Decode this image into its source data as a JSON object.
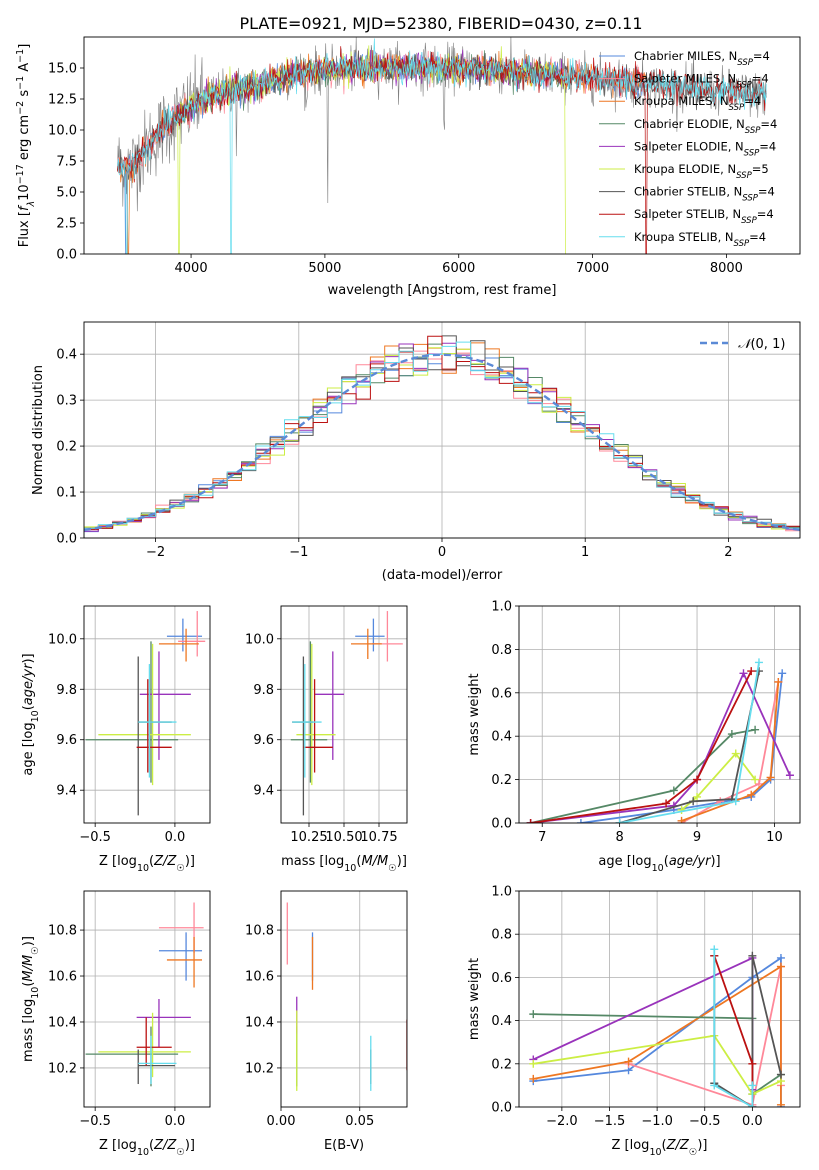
{
  "figure": {
    "title": "PLATE=0921, MJD=52380, FIBERID=0430, z=0.11"
  },
  "colors": {
    "Chabrier MILES": "#5588dd",
    "Salpeter MILES": "#ff8899",
    "Kroupa MILES": "#ee7722",
    "Chabrier ELODIE": "#558866",
    "Salpeter ELODIE": "#9933bb",
    "Kroupa ELODIE": "#ccee44",
    "Chabrier STELIB": "#555555",
    "Salpeter STELIB": "#bb1111",
    "Kroupa STELIB": "#66ddee",
    "data": "#808080"
  },
  "chart_data": [
    {
      "id": "spectrum",
      "type": "line",
      "title": "PLATE=0921, MJD=52380, FIBERID=0430, z=0.11",
      "xlabel": "wavelength [Angstrom, rest frame]",
      "ylabel": "Flux [f_λ 10^-17 erg cm^-2 s^-1 A^-1]",
      "xlim": [
        3200,
        8550
      ],
      "ylim": [
        0,
        17.5
      ],
      "xticks": [
        4000,
        5000,
        6000,
        7000,
        8000
      ],
      "yticks": [
        0.0,
        2.5,
        5.0,
        7.5,
        10.0,
        12.5,
        15.0
      ],
      "grid": false,
      "legend": "right",
      "legend_entries": [
        "Chabrier MILES, N_SSP=4",
        "Salpeter MILES, N_SSP=4",
        "Kroupa MILES, N_SSP=4",
        "Chabrier ELODIE, N_SSP=4",
        "Salpeter ELODIE, N_SSP=4",
        "Kroupa ELODIE, N_SSP=5",
        "Chabrier STELIB, N_SSP=4",
        "Salpeter STELIB, N_SSP=4",
        "Kroupa STELIB, N_SSP=4"
      ],
      "continuum": {
        "x": [
          3450,
          3550,
          3700,
          3800,
          3950,
          4100,
          4300,
          4500,
          4800,
          5000,
          5300,
          5600,
          6000,
          6300,
          6600,
          7000,
          7400,
          7800,
          8100,
          8300
        ],
        "y": [
          7.2,
          7.0,
          9.0,
          10.2,
          11.5,
          12.6,
          13.2,
          13.6,
          14.6,
          14.9,
          15.0,
          15.1,
          15.0,
          14.8,
          14.5,
          14.2,
          13.7,
          13.3,
          13.0,
          12.8
        ]
      }
    },
    {
      "id": "residuals",
      "type": "histogram",
      "xlabel": "(data-model)/error",
      "ylabel": "Normed distribution",
      "xlim": [
        -2.5,
        2.5
      ],
      "ylim": [
        0,
        0.47
      ],
      "xticks": [
        -2,
        -1,
        0,
        1,
        2
      ],
      "yticks": [
        0.0,
        0.1,
        0.2,
        0.3,
        0.4
      ],
      "grid": true,
      "legend": "top-right",
      "legend_entries": [
        "N(0,1)"
      ],
      "bin_width": 0.1,
      "bins_from": -2.5,
      "bins_to": 2.5
    },
    {
      "id": "age-vs-Z",
      "type": "errorbar",
      "xlabel": "Z [log10(Z/Z☉)]",
      "ylabel": "age [log10(age/yr)]",
      "xlim": [
        -0.57,
        0.22
      ],
      "ylim": [
        9.27,
        10.13
      ],
      "xticks": [
        -0.5,
        0.0
      ],
      "yticks": [
        9.4,
        9.6,
        9.8,
        10.0
      ],
      "grid": true,
      "points": [
        {
          "model": "Chabrier MILES",
          "x": 0.05,
          "xlo": -0.05,
          "xhi": 0.17,
          "y": 10.01,
          "ylo": 9.95,
          "yhi": 10.08
        },
        {
          "model": "Salpeter MILES",
          "x": 0.14,
          "xlo": 0.02,
          "xhi": 0.19,
          "y": 9.99,
          "ylo": 9.93,
          "yhi": 10.11
        },
        {
          "model": "Kroupa MILES",
          "x": 0.07,
          "xlo": -0.1,
          "xhi": 0.15,
          "y": 9.98,
          "ylo": 9.91,
          "yhi": 10.04
        },
        {
          "model": "Chabrier ELODIE",
          "x": -0.15,
          "xlo": -0.56,
          "xhi": 0.02,
          "y": 9.6,
          "ylo": 9.43,
          "yhi": 9.99
        },
        {
          "model": "Salpeter ELODIE",
          "x": -0.1,
          "xlo": -0.22,
          "xhi": 0.1,
          "y": 9.78,
          "ylo": 9.52,
          "yhi": 9.95
        },
        {
          "model": "Kroupa ELODIE",
          "x": -0.14,
          "xlo": -0.48,
          "xhi": 0.1,
          "y": 9.62,
          "ylo": 9.42,
          "yhi": 9.98
        },
        {
          "model": "Chabrier STELIB",
          "x": -0.23,
          "xlo": -0.23,
          "xhi": -0.02,
          "y": 9.67,
          "ylo": 9.3,
          "yhi": 9.93
        },
        {
          "model": "Salpeter STELIB",
          "x": -0.17,
          "xlo": -0.24,
          "xhi": -0.02,
          "y": 9.57,
          "ylo": 9.47,
          "yhi": 9.84
        },
        {
          "model": "Kroupa STELIB",
          "x": -0.16,
          "xlo": -0.23,
          "xhi": 0.01,
          "y": 9.67,
          "ylo": 9.45,
          "yhi": 9.9
        }
      ]
    },
    {
      "id": "age-vs-mass",
      "type": "errorbar",
      "xlabel": "mass [log10(M/M☉)]",
      "xlim": [
        10.05,
        10.95
      ],
      "ylim": [
        9.27,
        10.13
      ],
      "xticks": [
        10.25,
        10.5,
        10.75
      ],
      "xtick_labels": [
        "10.25",
        "10.50",
        "10.75"
      ],
      "yticks": [
        9.4,
        9.6,
        9.8,
        10.0
      ],
      "grid": true,
      "points": [
        {
          "model": "Chabrier MILES",
          "x": 10.71,
          "xlo": 10.58,
          "xhi": 10.79,
          "y": 10.01,
          "ylo": 9.95,
          "yhi": 10.08
        },
        {
          "model": "Salpeter MILES",
          "x": 10.81,
          "xlo": 10.7,
          "xhi": 10.92,
          "y": 9.98,
          "ylo": 9.91,
          "yhi": 10.11
        },
        {
          "model": "Kroupa MILES",
          "x": 10.67,
          "xlo": 10.55,
          "xhi": 10.77,
          "y": 9.98,
          "ylo": 9.92,
          "yhi": 10.04
        },
        {
          "model": "Chabrier ELODIE",
          "x": 10.26,
          "xlo": 10.12,
          "xhi": 10.38,
          "y": 9.6,
          "ylo": 9.43,
          "yhi": 9.99
        },
        {
          "model": "Salpeter ELODIE",
          "x": 10.42,
          "xlo": 10.29,
          "xhi": 10.5,
          "y": 9.78,
          "ylo": 9.52,
          "yhi": 9.95
        },
        {
          "model": "Kroupa ELODIE",
          "x": 10.27,
          "xlo": 10.16,
          "xhi": 10.44,
          "y": 9.62,
          "ylo": 9.42,
          "yhi": 9.98
        },
        {
          "model": "Chabrier STELIB",
          "x": 10.21,
          "xlo": 10.13,
          "xhi": 10.28,
          "y": 9.67,
          "ylo": 9.3,
          "yhi": 9.93
        },
        {
          "model": "Salpeter STELIB",
          "x": 10.29,
          "xlo": 10.21,
          "xhi": 10.42,
          "y": 9.57,
          "ylo": 9.47,
          "yhi": 9.84
        },
        {
          "model": "Kroupa STELIB",
          "x": 10.22,
          "xlo": 10.13,
          "xhi": 10.34,
          "y": 9.67,
          "ylo": 9.45,
          "yhi": 9.9
        }
      ]
    },
    {
      "id": "mass-weight-vs-age",
      "type": "line",
      "xlabel": "age [log10(age/yr)]",
      "ylabel": "mass weight",
      "xlim": [
        6.7,
        10.33
      ],
      "ylim": [
        0,
        1
      ],
      "xticks": [
        7,
        8,
        9,
        10
      ],
      "yticks": [
        0.0,
        0.2,
        0.4,
        0.6,
        0.8,
        1.0
      ],
      "grid": true,
      "series": [
        {
          "model": "Chabrier MILES",
          "x": [
            7.5,
            8.7,
            9.7,
            9.95,
            10.1
          ],
          "y": [
            0.0,
            0.06,
            0.12,
            0.2,
            0.69
          ]
        },
        {
          "model": "Salpeter MILES",
          "x": [
            8.8,
            9.3,
            9.8,
            10.05
          ],
          "y": [
            0.0,
            0.1,
            0.18,
            0.65
          ]
        },
        {
          "model": "Kroupa MILES",
          "x": [
            8.8,
            9.7,
            9.95,
            10.05
          ],
          "y": [
            0.01,
            0.13,
            0.21,
            0.65
          ]
        },
        {
          "model": "Chabrier ELODIE",
          "x": [
            6.85,
            8.7,
            9.45,
            9.75
          ],
          "y": [
            0.0,
            0.15,
            0.41,
            0.43
          ]
        },
        {
          "model": "Salpeter ELODIE",
          "x": [
            6.85,
            8.7,
            9.0,
            9.6,
            10.2
          ],
          "y": [
            0.0,
            0.08,
            0.2,
            0.69,
            0.22
          ]
        },
        {
          "model": "Kroupa ELODIE",
          "x": [
            8.8,
            9.0,
            9.5,
            9.75
          ],
          "y": [
            0.06,
            0.12,
            0.32,
            0.2
          ]
        },
        {
          "model": "Chabrier STELIB",
          "x": [
            8.0,
            8.95,
            9.45,
            9.8
          ],
          "y": [
            0.0,
            0.1,
            0.11,
            0.7
          ]
        },
        {
          "model": "Salpeter STELIB",
          "x": [
            6.85,
            8.6,
            9.0,
            9.7
          ],
          "y": [
            0.0,
            0.09,
            0.2,
            0.7
          ]
        },
        {
          "model": "Kroupa STELIB",
          "x": [
            8.0,
            9.5,
            9.8
          ],
          "y": [
            0.0,
            0.1,
            0.74
          ]
        }
      ]
    },
    {
      "id": "mass-vs-Z",
      "type": "errorbar",
      "xlabel": "Z [log10(Z/Z☉)]",
      "ylabel": "mass [log10(M/M☉)]",
      "xlim": [
        -0.57,
        0.22
      ],
      "ylim": [
        10.03,
        10.97
      ],
      "xticks": [
        -0.5,
        0.0
      ],
      "yticks": [
        10.2,
        10.4,
        10.6,
        10.8
      ],
      "grid": true,
      "points": [
        {
          "model": "Chabrier MILES",
          "x": 0.07,
          "xlo": -0.1,
          "xhi": 0.17,
          "y": 10.71,
          "ylo": 10.58,
          "yhi": 10.79
        },
        {
          "model": "Salpeter MILES",
          "x": 0.12,
          "xlo": -0.1,
          "xhi": 0.18,
          "y": 10.81,
          "ylo": 10.7,
          "yhi": 10.92
        },
        {
          "model": "Kroupa MILES",
          "x": 0.12,
          "xlo": -0.05,
          "xhi": 0.17,
          "y": 10.67,
          "ylo": 10.55,
          "yhi": 10.77
        },
        {
          "model": "Chabrier ELODIE",
          "x": -0.15,
          "xlo": -0.56,
          "xhi": 0.02,
          "y": 10.26,
          "ylo": 10.12,
          "yhi": 10.38
        },
        {
          "model": "Salpeter ELODIE",
          "x": -0.1,
          "xlo": -0.24,
          "xhi": 0.1,
          "y": 10.42,
          "ylo": 10.29,
          "yhi": 10.5
        },
        {
          "model": "Kroupa ELODIE",
          "x": -0.14,
          "xlo": -0.48,
          "xhi": 0.1,
          "y": 10.27,
          "ylo": 10.16,
          "yhi": 10.44
        },
        {
          "model": "Chabrier STELIB",
          "x": -0.23,
          "xlo": -0.23,
          "xhi": 0.0,
          "y": 10.21,
          "ylo": 10.13,
          "yhi": 10.28
        },
        {
          "model": "Salpeter STELIB",
          "x": -0.18,
          "xlo": -0.24,
          "xhi": -0.02,
          "y": 10.29,
          "ylo": 10.21,
          "yhi": 10.42
        },
        {
          "model": "Kroupa STELIB",
          "x": -0.15,
          "xlo": -0.23,
          "xhi": 0.01,
          "y": 10.22,
          "ylo": 10.13,
          "yhi": 10.34
        }
      ]
    },
    {
      "id": "mass-vs-ebv",
      "type": "errorbar",
      "xlabel": "E(B-V)",
      "xlim": [
        0,
        0.08
      ],
      "ylim": [
        10.03,
        10.97
      ],
      "xticks": [
        0.0,
        0.05
      ],
      "xtick_labels": [
        "0.00",
        "0.05"
      ],
      "yticks": [
        10.2,
        10.4,
        10.6,
        10.8
      ],
      "grid": true,
      "points": [
        {
          "model": "Chabrier MILES",
          "x": 0.02,
          "y": 10.71,
          "ylo": 10.58,
          "yhi": 10.79
        },
        {
          "model": "Salpeter MILES",
          "x": 0.004,
          "y": 10.81,
          "ylo": 10.65,
          "yhi": 10.92
        },
        {
          "model": "Kroupa MILES",
          "x": 0.02,
          "y": 10.67,
          "ylo": 10.54,
          "yhi": 10.77
        },
        {
          "model": "Chabrier ELODIE",
          "x": 0.01,
          "y": 10.26,
          "ylo": 10.12,
          "yhi": 10.38
        },
        {
          "model": "Salpeter ELODIE",
          "x": 0.01,
          "y": 10.42,
          "ylo": 10.35,
          "yhi": 10.51
        },
        {
          "model": "Kroupa ELODIE",
          "x": 0.01,
          "y": 10.27,
          "ylo": 10.1,
          "yhi": 10.45
        },
        {
          "model": "Chabrier STELIB",
          "x": 0.057,
          "y": 10.21,
          "ylo": 10.13,
          "yhi": 10.28
        },
        {
          "model": "Salpeter STELIB",
          "x": 0.08,
          "y": 10.29,
          "ylo": 10.19,
          "yhi": 10.41
        },
        {
          "model": "Kroupa STELIB",
          "x": 0.057,
          "y": 10.22,
          "ylo": 10.1,
          "yhi": 10.34
        }
      ]
    },
    {
      "id": "mass-weight-vs-Z",
      "type": "line",
      "xlabel": "Z [log10(Z/Z☉)]",
      "ylabel": "mass weight",
      "xlim": [
        -2.45,
        0.5
      ],
      "ylim": [
        0,
        1
      ],
      "xticks": [
        -2.0,
        -1.5,
        -1.0,
        -0.5,
        0.0
      ],
      "yticks": [
        0.0,
        0.2,
        0.4,
        0.6,
        0.8,
        1.0
      ],
      "grid": true,
      "series": [
        {
          "model": "Chabrier MILES",
          "x": [
            -2.3,
            -1.3,
            0.0,
            0.3,
            0.3
          ],
          "y": [
            0.12,
            0.17,
            0.6,
            0.69,
            0.0
          ]
        },
        {
          "model": "Salpeter MILES",
          "x": [
            -1.3,
            0.0,
            0.3,
            0.3
          ],
          "y": [
            0.2,
            0.01,
            0.65,
            0.1
          ]
        },
        {
          "model": "Kroupa MILES",
          "x": [
            -2.3,
            -1.3,
            0.3,
            0.3
          ],
          "y": [
            0.13,
            0.21,
            0.65,
            0.01
          ]
        },
        {
          "model": "Chabrier ELODIE",
          "x": [
            -2.3,
            0.0,
            0.0,
            0.3
          ],
          "y": [
            0.43,
            0.41,
            0.06,
            0.15
          ]
        },
        {
          "model": "Salpeter ELODIE",
          "x": [
            -2.3,
            0.0,
            0.0
          ],
          "y": [
            0.22,
            0.69,
            0.08
          ]
        },
        {
          "model": "Kroupa ELODIE",
          "x": [
            -2.3,
            -0.4,
            0.0,
            0.3
          ],
          "y": [
            0.2,
            0.33,
            0.06,
            0.12
          ]
        },
        {
          "model": "Chabrier STELIB",
          "x": [
            -0.4,
            -0.4,
            0.0,
            0.0,
            0.3
          ],
          "y": [
            0.7,
            0.11,
            0.0,
            0.7,
            0.15
          ]
        },
        {
          "model": "Salpeter STELIB",
          "x": [
            -0.4,
            0.0,
            0.0
          ],
          "y": [
            0.7,
            0.2,
            0.0
          ]
        },
        {
          "model": "Kroupa STELIB",
          "x": [
            -0.4,
            -0.4,
            0.0,
            0.0
          ],
          "y": [
            0.73,
            0.1,
            0.0,
            0.1
          ]
        }
      ]
    }
  ]
}
